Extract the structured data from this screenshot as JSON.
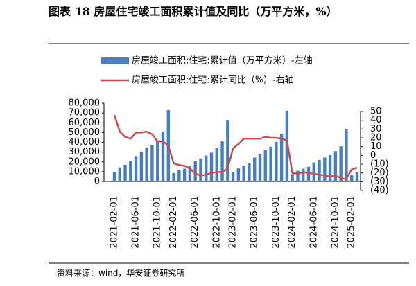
{
  "chart_data": {
    "type": "bar_line",
    "title": "图表 18 房屋住宅竣工面积累计值及同比（万平方米，%）",
    "source": "资料来源：wind，华安证券研究所",
    "categories": [
      "2021-02-01",
      null,
      null,
      null,
      "2021-06-01",
      null,
      null,
      null,
      "2021-10-01",
      null,
      null,
      "2022-02-01",
      null,
      null,
      null,
      "2022-06-01",
      null,
      null,
      null,
      "2022-10-01",
      null,
      null,
      "2023-02-01",
      null,
      null,
      null,
      "2023-06-01",
      null,
      null,
      null,
      "2023-10-01",
      null,
      null,
      "2024-02-01",
      null,
      null,
      null,
      "2024-06-01",
      null,
      null,
      null,
      "2024-10-01",
      null,
      null,
      "2025-02-01",
      null
    ],
    "series": [
      {
        "name": "房屋竣工面积:住宅:累计值（万平方米）-左轴",
        "color": "#4a7ebb",
        "kind": "bar",
        "values": [
          10000,
          14400,
          17000,
          21000,
          26000,
          30500,
          34000,
          37500,
          42000,
          51000,
          73016,
          8600,
          11500,
          13000,
          15600,
          20500,
          23500,
          26500,
          29500,
          34000,
          41000,
          62539,
          9600,
          13500,
          16000,
          18500,
          24500,
          28000,
          32000,
          35500,
          40500,
          48500,
          72433,
          7500,
          11000,
          13000,
          15000,
          19500,
          22000,
          24500,
          27000,
          31000,
          36000,
          53741,
          6500,
          9500
        ]
      },
      {
        "name": "房屋竣工面积:住宅:累计同比（%）-右轴",
        "color": "#c0504d",
        "kind": "line",
        "axis": "y2",
        "values": [
          46,
          27,
          21,
          19,
          26,
          26,
          27,
          24,
          16,
          16,
          11,
          -9,
          -11,
          -12,
          -15,
          -21,
          -23,
          -22,
          -20,
          -19,
          -19,
          -15,
          8,
          13,
          19,
          19,
          19,
          19,
          21,
          20,
          20,
          19,
          17,
          -20,
          -21,
          -19,
          -20,
          -21,
          -22,
          -23,
          -24,
          -23,
          -26,
          -27,
          -16,
          -14
        ]
      }
    ],
    "ylim": [
      0,
      80000
    ],
    "yticks": [
      0,
      {
        "value": 10000,
        "label": "10,000"
      },
      {
        "value": 20000,
        "label": "20,000"
      },
      {
        "value": 30000,
        "label": "30,000"
      },
      {
        "value": 40000,
        "label": "40,000"
      },
      {
        "value": 50000,
        "label": "50,000"
      },
      {
        "value": 60000,
        "label": "60,000"
      },
      {
        "value": 70000,
        "label": "70,000"
      },
      {
        "value": 80000,
        "label": "80,000"
      }
    ],
    "y2lim": [
      -40,
      50
    ],
    "y2ticks": [
      {
        "value": -40,
        "label": "(40)"
      },
      {
        "value": -30,
        "label": "(30)"
      },
      {
        "value": -20,
        "label": "(20)"
      },
      {
        "value": -10,
        "label": "(10)"
      },
      0,
      10,
      20,
      30,
      40,
      50
    ],
    "y2_negative_color": "#d00000"
  }
}
